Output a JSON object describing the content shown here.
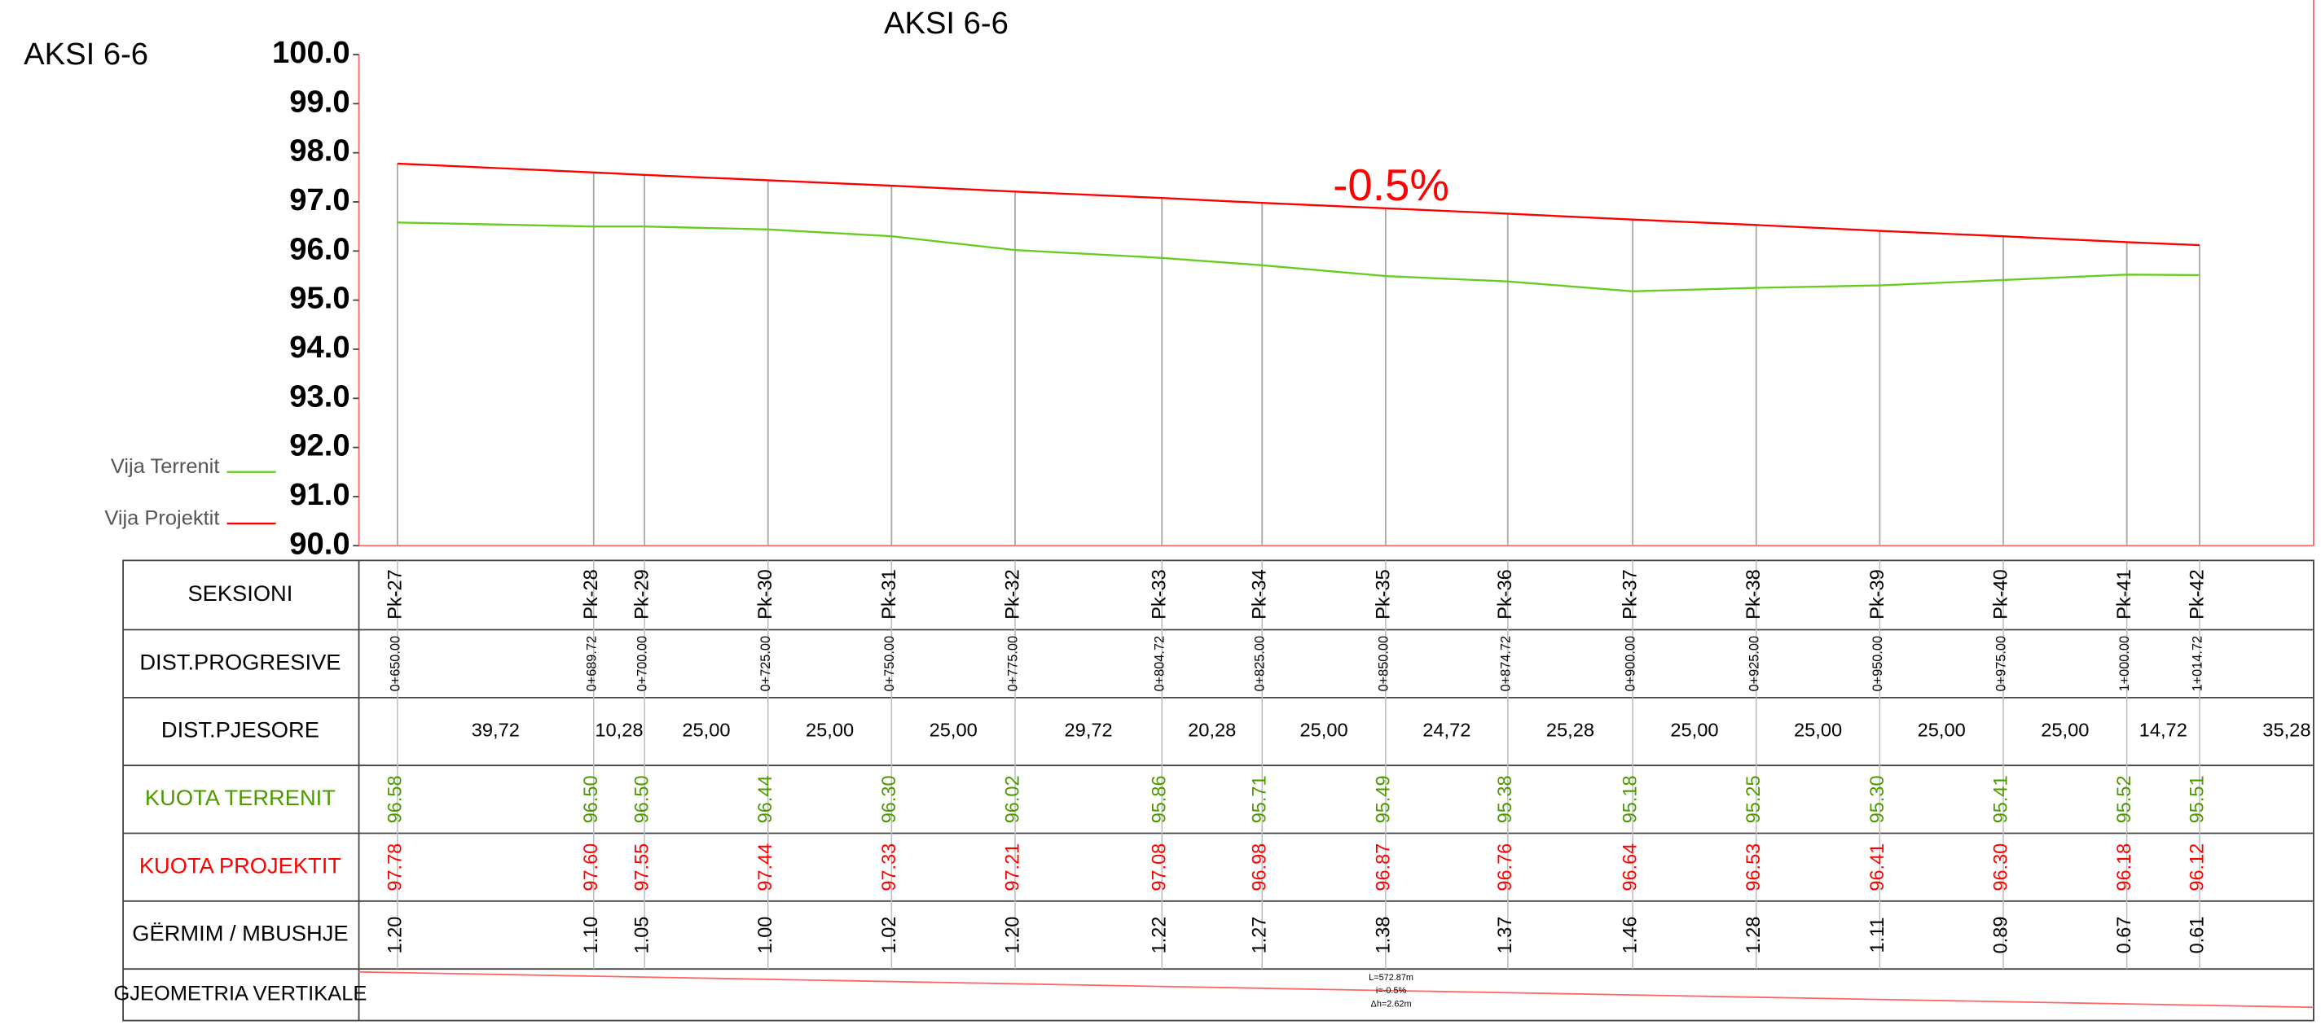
{
  "left_title": "AKSI 6-6",
  "chart_data": {
    "type": "line",
    "title": "AKSI 6-6",
    "annotation": "-0.5%",
    "x": [
      650,
      689.72,
      700,
      725,
      750,
      775,
      804.72,
      825,
      850,
      874.72,
      900,
      925,
      950,
      975,
      1000,
      1014.72
    ],
    "xlim": [
      642.2,
      1037.8
    ],
    "ylim": [
      90,
      100
    ],
    "yticks": [
      {
        "value": 90,
        "label": "90.0"
      },
      {
        "value": 91,
        "label": "91.0"
      },
      {
        "value": 92,
        "label": "92.0"
      },
      {
        "value": 93,
        "label": "93.0"
      },
      {
        "value": 94,
        "label": "94.0"
      },
      {
        "value": 95,
        "label": "95.0"
      },
      {
        "value": 96,
        "label": "96.0"
      },
      {
        "value": 97,
        "label": "97.0"
      },
      {
        "value": 98,
        "label": "98.0"
      },
      {
        "value": 99,
        "label": "99.0"
      },
      {
        "value": 100,
        "label": "100.0"
      }
    ],
    "series": [
      {
        "name": "Vija Terrenit",
        "color": "#66cc22",
        "values": [
          96.58,
          96.5,
          96.5,
          96.44,
          96.3,
          96.02,
          95.86,
          95.71,
          95.49,
          95.38,
          95.18,
          95.25,
          95.3,
          95.41,
          95.52,
          95.51
        ],
        "value_labels": [
          "96.58",
          "96.50",
          "96.50",
          "96.44",
          "96.30",
          "96.02",
          "95.86",
          "95.71",
          "95.49",
          "95.38",
          "95.18",
          "95.25",
          "95.30",
          "95.41",
          "95.52",
          "95.51"
        ]
      },
      {
        "name": "Vija Projektit",
        "color": "#ff0000",
        "values": [
          97.78,
          97.6,
          97.55,
          97.44,
          97.33,
          97.21,
          97.08,
          96.98,
          96.87,
          96.76,
          96.64,
          96.53,
          96.41,
          96.3,
          96.18,
          96.12
        ],
        "value_labels": [
          "97.78",
          "97.60",
          "97.55",
          "97.44",
          "97.33",
          "97.21",
          "97.08",
          "96.98",
          "96.87",
          "96.76",
          "96.64",
          "96.53",
          "96.41",
          "96.30",
          "96.18",
          "96.12"
        ]
      }
    ]
  },
  "table": {
    "headers": [
      "SEKSIONI",
      "DIST.PROGRESIVE",
      "DIST.PJESORE",
      "KUOTA TERRENIT",
      "KUOTA PROJEKTIT",
      "GËRMIM / MBUSHJE",
      "GJEOMETRIA VERTIKALE"
    ],
    "sections": [
      "Pk-27",
      "Pk-28",
      "Pk-29",
      "Pk-30",
      "Pk-31",
      "Pk-32",
      "Pk-33",
      "Pk-34",
      "Pk-35",
      "Pk-36",
      "Pk-37",
      "Pk-38",
      "Pk-39",
      "Pk-40",
      "Pk-41",
      "Pk-42"
    ],
    "stations": [
      "0+650.00",
      "0+689.72",
      "0+700.00",
      "0+725.00",
      "0+750.00",
      "0+775.00",
      "0+804.72",
      "0+825.00",
      "0+850.00",
      "0+874.72",
      "0+900.00",
      "0+925.00",
      "0+950.00",
      "0+975.00",
      "1+000.00",
      "1+014.72"
    ],
    "partial": [
      "39,72",
      "10,28",
      "25,00",
      "25,00",
      "25,00",
      "29,72",
      "20,28",
      "25,00",
      "24,72",
      "25,28",
      "25,00",
      "25,00",
      "25,00",
      "25,00",
      "14,72",
      "35,28"
    ],
    "cut_fill": [
      "1.20",
      "1.10",
      "1.05",
      "1.00",
      "1.02",
      "1.20",
      "1.22",
      "1.27",
      "1.38",
      "1.37",
      "1.46",
      "1.28",
      "1.11",
      "0.89",
      "0.67",
      "0.61"
    ]
  },
  "geometry": [
    "L=572.87m",
    "i=-0.5%",
    "Δh=2.62m"
  ]
}
